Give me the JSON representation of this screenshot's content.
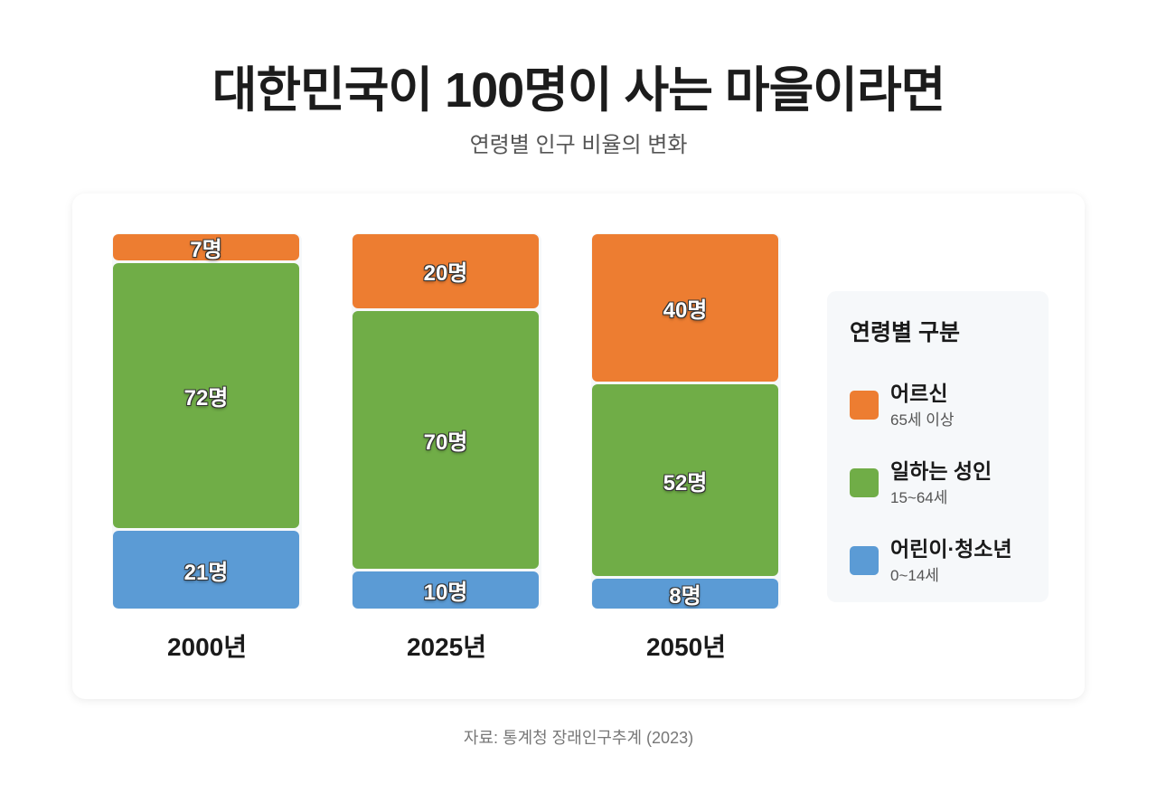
{
  "title": "대한민국이 100명이 사는 마을이라면",
  "subtitle": "연령별 인구 비율의 변화",
  "source": "자료: 통계청 장래인구추계 (2023)",
  "colors": {
    "elderly": "#ED7D31",
    "working": "#70AD47",
    "youth": "#5B9BD5"
  },
  "chart_data": {
    "type": "bar",
    "stacked": true,
    "categories": [
      "2000년",
      "2025년",
      "2050년"
    ],
    "series": [
      {
        "name": "어르신",
        "range": "65세 이상",
        "values": [
          7,
          20,
          40
        ],
        "labels": [
          "7명",
          "20명",
          "40명"
        ]
      },
      {
        "name": "일하는 성인",
        "range": "15~64세",
        "values": [
          72,
          70,
          52
        ],
        "labels": [
          "72명",
          "70명",
          "52명"
        ]
      },
      {
        "name": "어린이·청소년",
        "range": "0~14세",
        "values": [
          21,
          10,
          8
        ],
        "labels": [
          "21명",
          "10명",
          "8명"
        ]
      }
    ],
    "total": 100,
    "legend_title": "연령별 구분",
    "legend_position": "right"
  }
}
